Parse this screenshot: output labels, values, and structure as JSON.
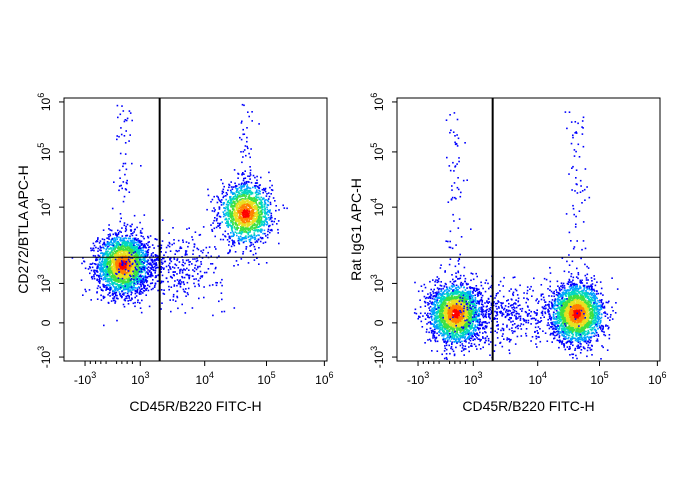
{
  "chart_data": [
    {
      "type": "scatter",
      "title": "",
      "xlabel": "CD45R/B220 FITC-H",
      "ylabel": "CD272/BTLA APC-H",
      "x_scale": "biexponential",
      "y_scale": "biexponential",
      "x_ticks": [
        {
          "value": -1000,
          "base": "-10",
          "exp": "3"
        },
        {
          "value": 1000,
          "base": "10",
          "exp": "3"
        },
        {
          "value": 10000,
          "base": "10",
          "exp": "4"
        },
        {
          "value": 100000,
          "base": "10",
          "exp": "5"
        },
        {
          "value": 1000000,
          "base": "10",
          "exp": "6"
        }
      ],
      "y_ticks": [
        {
          "value": -1000,
          "base": "-10",
          "exp": "3"
        },
        {
          "value": 0,
          "base": "0",
          "exp": ""
        },
        {
          "value": 1000,
          "base": "10",
          "exp": "3"
        },
        {
          "value": 10000,
          "base": "10",
          "exp": "4"
        },
        {
          "value": 100000,
          "base": "10",
          "exp": "5"
        },
        {
          "value": 1000000,
          "base": "10",
          "exp": "6"
        }
      ],
      "gates": {
        "x": 2000,
        "y": 2200
      },
      "populations": [
        {
          "x": 400,
          "y": 1800,
          "count": 2600,
          "color": "dense"
        },
        {
          "x": 45000,
          "y": 8500,
          "count": 1500,
          "color": "dense"
        },
        {
          "x": 2500,
          "y": 1600,
          "count": 450,
          "color": "sparse"
        }
      ],
      "grid": false,
      "density_colors": [
        "#0000ff",
        "#00a0ff",
        "#00d8c0",
        "#40e040",
        "#e8e020",
        "#ff8000",
        "#ff0000"
      ]
    },
    {
      "type": "scatter",
      "title": "",
      "xlabel": "CD45R/B220 FITC-H",
      "ylabel": "Rat IgG1 APC-H",
      "x_scale": "biexponential",
      "y_scale": "biexponential",
      "x_ticks": [
        {
          "value": -1000,
          "base": "-10",
          "exp": "3"
        },
        {
          "value": 1000,
          "base": "10",
          "exp": "3"
        },
        {
          "value": 10000,
          "base": "10",
          "exp": "4"
        },
        {
          "value": 100000,
          "base": "10",
          "exp": "5"
        },
        {
          "value": 1000000,
          "base": "10",
          "exp": "6"
        }
      ],
      "y_ticks": [
        {
          "value": -1000,
          "base": "-10",
          "exp": "3"
        },
        {
          "value": 0,
          "base": "0",
          "exp": ""
        },
        {
          "value": 1000,
          "base": "10",
          "exp": "3"
        },
        {
          "value": 10000,
          "base": "10",
          "exp": "4"
        },
        {
          "value": 100000,
          "base": "10",
          "exp": "5"
        },
        {
          "value": 1000000,
          "base": "10",
          "exp": "6"
        }
      ],
      "gates": {
        "x": 2000,
        "y": 2200
      },
      "populations": [
        {
          "x": 380,
          "y": 250,
          "count": 2400,
          "color": "dense"
        },
        {
          "x": 42000,
          "y": 250,
          "count": 2400,
          "color": "dense"
        },
        {
          "x": 3500,
          "y": 250,
          "count": 450,
          "color": "sparse"
        }
      ],
      "grid": false,
      "density_colors": [
        "#0000ff",
        "#00a0ff",
        "#00d8c0",
        "#40e040",
        "#e8e020",
        "#ff8000",
        "#ff0000"
      ]
    }
  ]
}
